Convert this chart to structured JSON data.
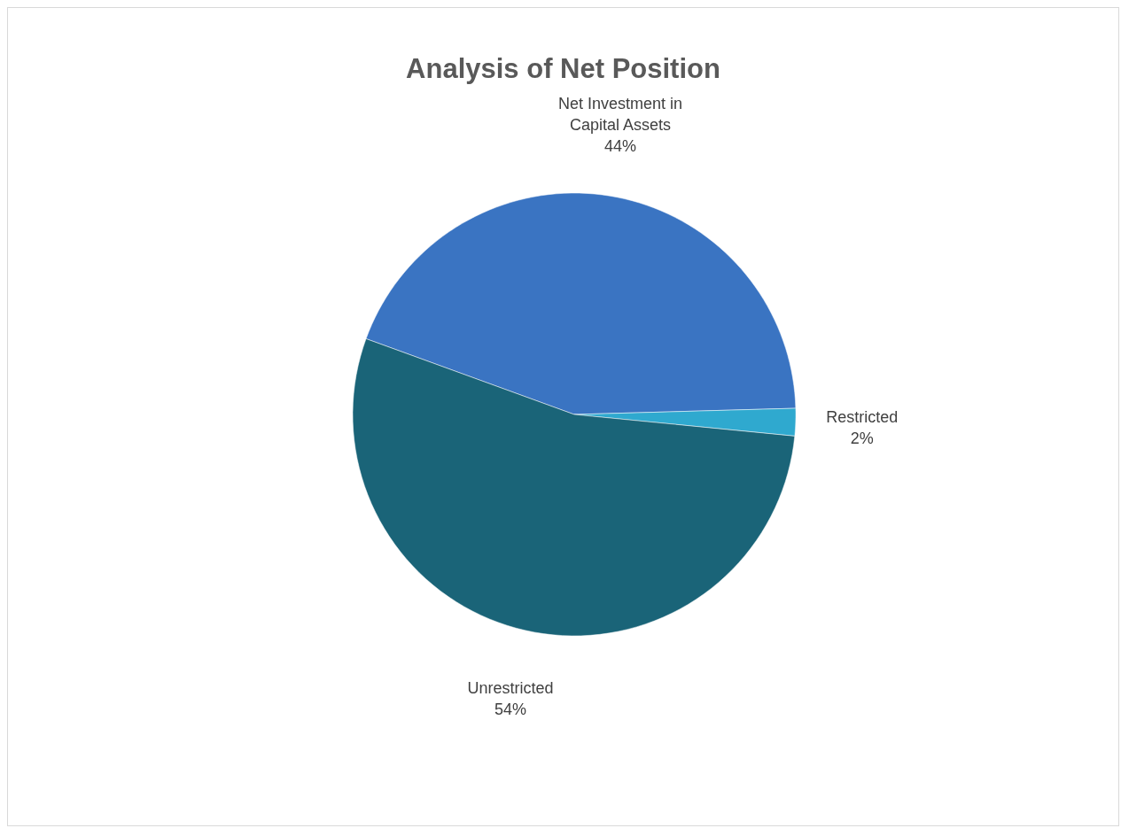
{
  "chart_data": {
    "type": "pie",
    "title": "Analysis of Net Position",
    "categories": [
      "Net Investment in Capital Assets",
      "Restricted",
      "Unrestricted"
    ],
    "values": [
      44,
      2,
      54
    ],
    "colors": [
      "#3a74c2",
      "#2fa9cf",
      "#1a6478"
    ],
    "value_labels": [
      "44%",
      "2%",
      "54%"
    ],
    "legend": false
  }
}
